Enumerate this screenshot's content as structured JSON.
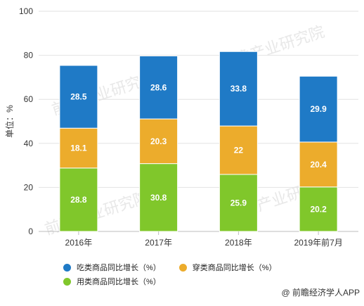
{
  "chart_data": {
    "type": "bar",
    "stacked": true,
    "categories": [
      "2016年",
      "2017年",
      "2018年",
      "2019年前7月"
    ],
    "series": [
      {
        "name": "用类商品同比增长（%）",
        "color": "#80c72b",
        "values": [
          28.8,
          30.8,
          25.9,
          20.2
        ]
      },
      {
        "name": "穿类商品同比增长（%）",
        "color": "#ecac2c",
        "values": [
          18.1,
          20.3,
          22,
          20.4
        ]
      },
      {
        "name": "吃类商品同比增长（%）",
        "color": "#1f7ac6",
        "values": [
          28.5,
          28.6,
          33.8,
          29.9
        ]
      }
    ],
    "data_labels": [
      [
        "28.8",
        "30.8",
        "25.9",
        "20.2"
      ],
      [
        "18.1",
        "20.3",
        "22",
        "20.4"
      ],
      [
        "28.5",
        "28.6",
        "33.8",
        "29.9"
      ]
    ],
    "ylabel": "单位：%",
    "ylim": [
      0,
      100
    ],
    "yticks": [
      0,
      20,
      40,
      60,
      80,
      100
    ],
    "grid": true,
    "legend_position": "bottom"
  },
  "legend": {
    "eat_label": "吃类商品同比增长（%）",
    "wear_label": "穿类商品同比增长（%）",
    "use_label": "用类商品同比增长（%）"
  },
  "source": "@ 前瞻经济学人APP",
  "watermark": "前瞻产业研究院"
}
